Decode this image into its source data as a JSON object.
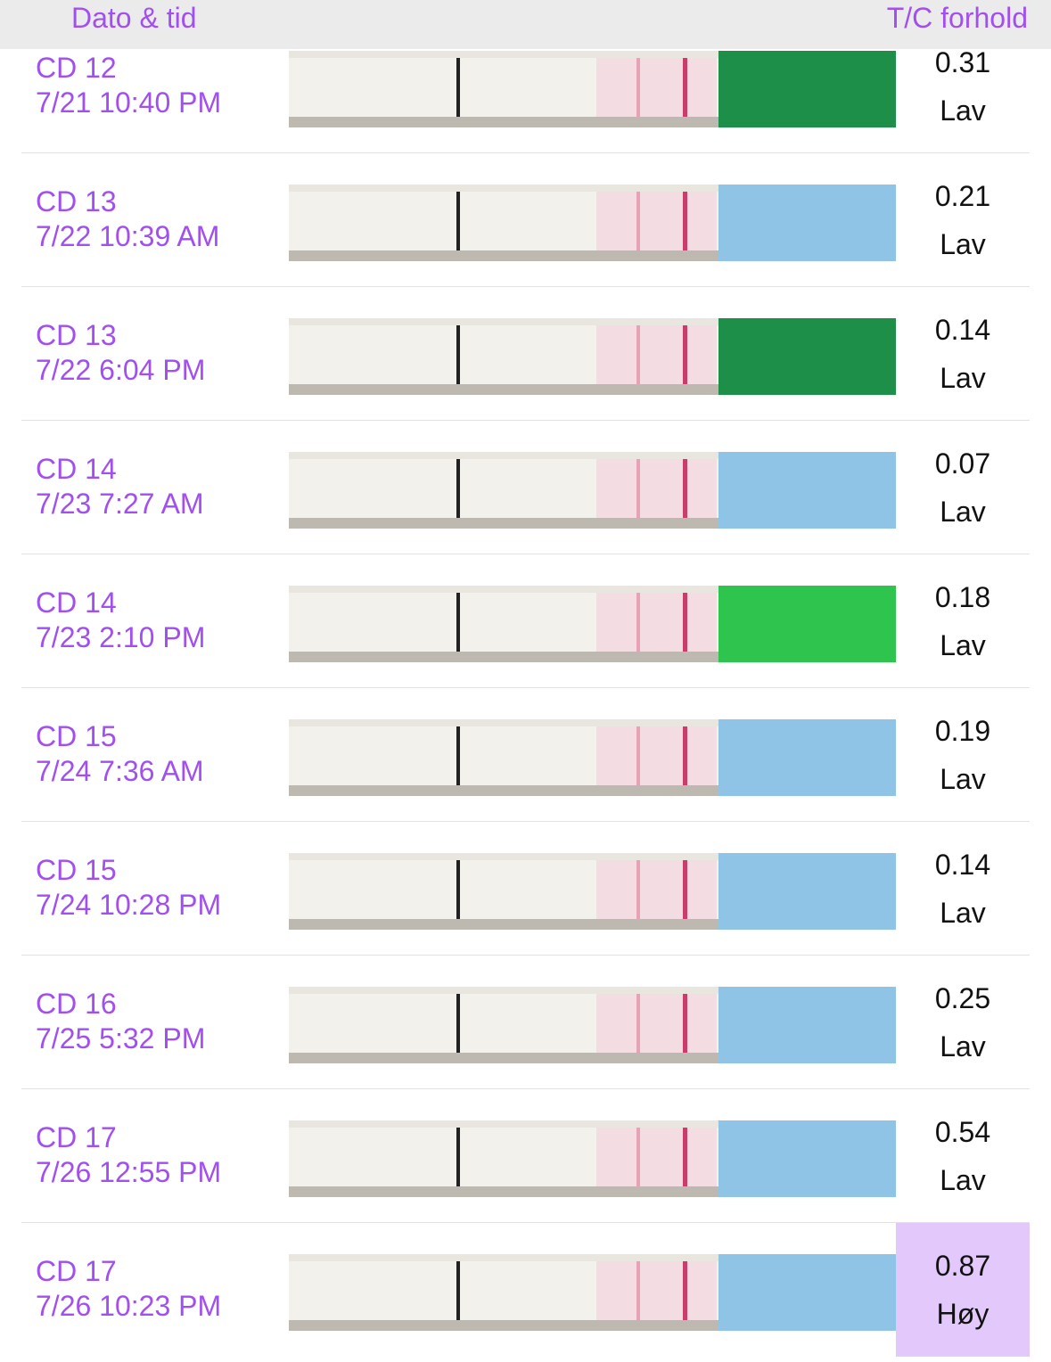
{
  "header": {
    "left": "Dato & tid",
    "right": "T/C forhold"
  },
  "rows": [
    {
      "cycle_day": "CD 12",
      "datetime": "7/21 10:40 PM",
      "ratio": "0.31",
      "level": "Lav"
    },
    {
      "cycle_day": "CD 13",
      "datetime": "7/22 10:39 AM",
      "ratio": "0.21",
      "level": "Lav"
    },
    {
      "cycle_day": "CD 13",
      "datetime": "7/22 6:04 PM",
      "ratio": "0.14",
      "level": "Lav"
    },
    {
      "cycle_day": "CD 14",
      "datetime": "7/23 7:27 AM",
      "ratio": "0.07",
      "level": "Lav"
    },
    {
      "cycle_day": "CD 14",
      "datetime": "7/23 2:10 PM",
      "ratio": "0.18",
      "level": "Lav"
    },
    {
      "cycle_day": "CD 15",
      "datetime": "7/24 7:36 AM",
      "ratio": "0.19",
      "level": "Lav"
    },
    {
      "cycle_day": "CD 15",
      "datetime": "7/24 10:28 PM",
      "ratio": "0.14",
      "level": "Lav"
    },
    {
      "cycle_day": "CD 16",
      "datetime": "7/25 5:32 PM",
      "ratio": "0.25",
      "level": "Lav"
    },
    {
      "cycle_day": "CD 17",
      "datetime": "7/26 12:55 PM",
      "ratio": "0.54",
      "level": "Lav"
    },
    {
      "cycle_day": "CD 17",
      "datetime": "7/26 10:23 PM",
      "ratio": "0.87",
      "level": "Høy"
    }
  ]
}
